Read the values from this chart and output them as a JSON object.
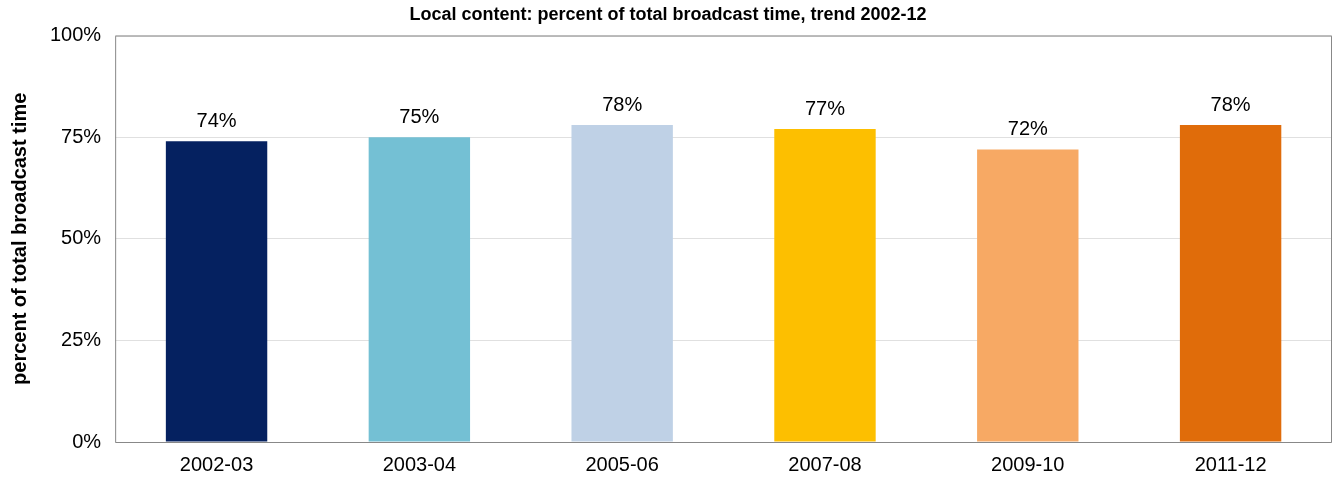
{
  "chart_data": {
    "type": "bar",
    "title": "Local content: percent of total broadcast time, trend 2002-12",
    "ylabel": "percent of total broadcast time",
    "categories": [
      "2002-03",
      "2003-04",
      "2005-06",
      "2007-08",
      "2009-10",
      "2011-12"
    ],
    "values": [
      74,
      75,
      78,
      77,
      72,
      78
    ],
    "colors": [
      "#052160",
      "#74c0d4",
      "#bfd1e6",
      "#fdbf00",
      "#f7a964",
      "#e06c0a"
    ],
    "value_labels": [
      "74%",
      "75%",
      "78%",
      "77%",
      "72%",
      "78%"
    ],
    "ylim": [
      0,
      100
    ],
    "yticks": [
      {
        "value": 0,
        "label": "0%"
      },
      {
        "value": 25,
        "label": "25%"
      },
      {
        "value": 50,
        "label": "50%"
      },
      {
        "value": 75,
        "label": "75%"
      },
      {
        "value": 100,
        "label": "100%"
      }
    ],
    "grid": "y",
    "legend": false
  }
}
